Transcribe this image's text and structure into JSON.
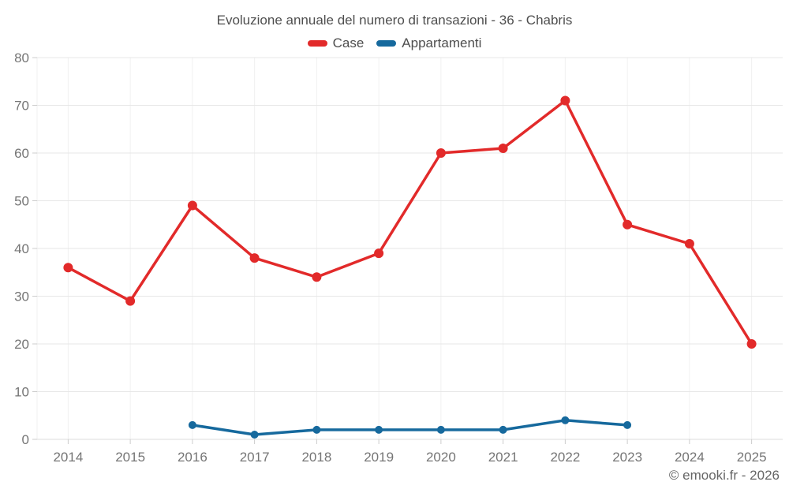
{
  "title": "Evoluzione annuale del numero di transazioni - 36 - Chabris",
  "copyright": "© emooki.fr - 2026",
  "legend": {
    "position": "top",
    "items": [
      {
        "label": "Case",
        "color": "#e22a2a"
      },
      {
        "label": "Appartamenti",
        "color": "#16699d"
      }
    ]
  },
  "chart_data": {
    "type": "line",
    "title": "Evoluzione annuale del numero di transazioni - 36 - Chabris",
    "categories": [
      "2014",
      "2015",
      "2016",
      "2017",
      "2018",
      "2019",
      "2020",
      "2021",
      "2022",
      "2023",
      "2024",
      "2025"
    ],
    "series": [
      {
        "name": "Case",
        "color": "#e22a2a",
        "marker_radius": 6,
        "values": [
          36,
          29,
          49,
          38,
          34,
          39,
          60,
          61,
          71,
          45,
          41,
          20
        ]
      },
      {
        "name": "Appartamenti",
        "color": "#16699d",
        "marker_radius": 5,
        "values": [
          null,
          null,
          3,
          1,
          2,
          2,
          2,
          2,
          4,
          3,
          null,
          null
        ]
      }
    ],
    "xlabel": "",
    "ylabel": "",
    "ylim": [
      0,
      80
    ],
    "ytick_step": 10,
    "grid": true,
    "legend_position": "top",
    "style": {
      "grid_color": "#e7e7e7",
      "vgrid_color": "#f0f0f0",
      "axis_color": "#dcdcdc",
      "tick_color": "#cccccc",
      "tick_label_color": "#757575",
      "line_width": 3.5
    }
  }
}
